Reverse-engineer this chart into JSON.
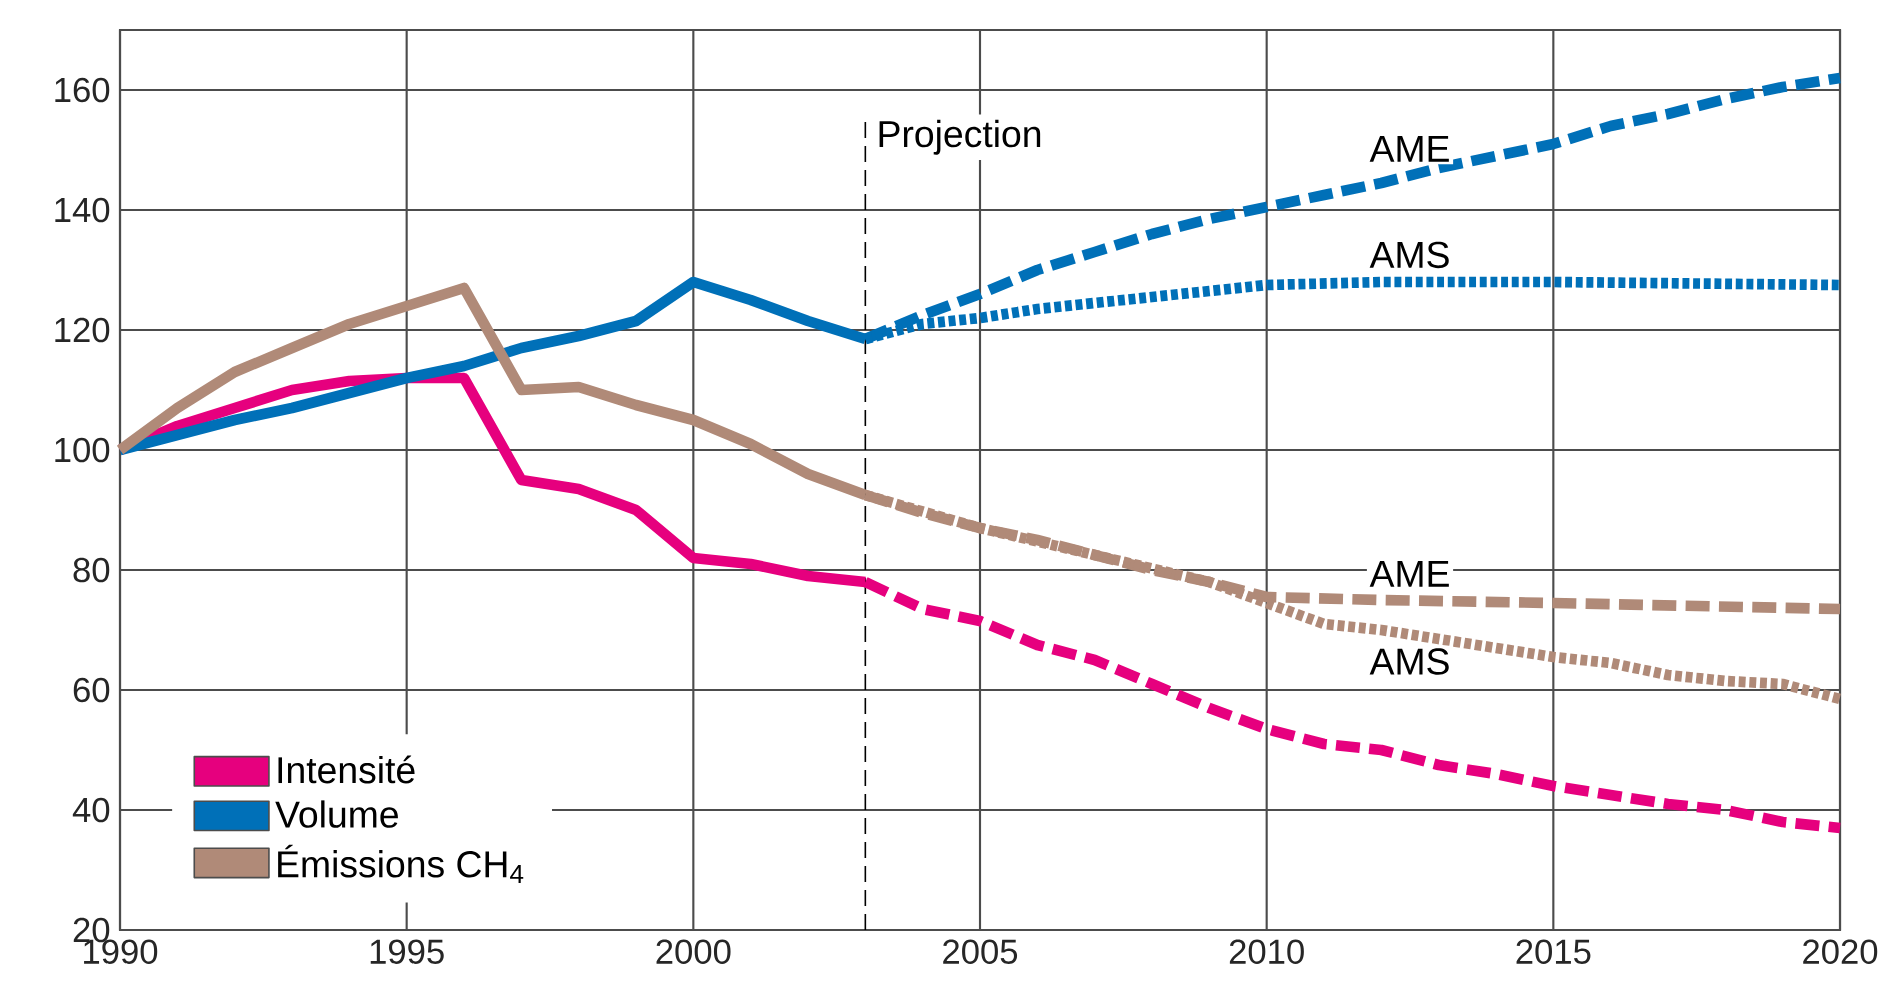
{
  "chart_data": {
    "type": "line",
    "xlim": [
      1990,
      2020
    ],
    "ylim": [
      20,
      170
    ],
    "xticks": [
      1990,
      1995,
      2000,
      2005,
      2010,
      2015,
      2020
    ],
    "yticks": [
      20,
      40,
      60,
      80,
      100,
      120,
      140,
      160
    ],
    "grid": true,
    "legend": "bottom left",
    "marker": "none",
    "ref_lines": [
      {
        "axis": "x",
        "value": 2003,
        "label": "Projection",
        "color": "#000000",
        "line_style": "dashed"
      }
    ],
    "series": [
      {
        "name": "Intensité",
        "color": "#e6007e",
        "line_style": "solid",
        "x": [
          1990,
          1991,
          1992,
          1993,
          1994,
          1995,
          1996,
          1997,
          1998,
          1999,
          2000,
          2001,
          2002,
          2003
        ],
        "values": [
          100,
          104,
          107,
          110,
          111.5,
          112,
          112,
          95,
          93.5,
          90,
          82,
          81,
          79,
          78
        ]
      },
      {
        "name": "Volume",
        "color": "#0070b8",
        "line_style": "solid",
        "x": [
          1990,
          1991,
          1992,
          1993,
          1994,
          1995,
          1996,
          1997,
          1998,
          1999,
          2000,
          2001,
          2002,
          2003
        ],
        "values": [
          100,
          102.5,
          105,
          107,
          109.5,
          112,
          114,
          117,
          119,
          121.5,
          128,
          125,
          121.5,
          118.5
        ]
      },
      {
        "name": "Émissions CH$_{4}$",
        "color": "#b08a78",
        "line_style": "solid",
        "x": [
          1990,
          1991,
          1992,
          1993,
          1994,
          1995,
          1996,
          1997,
          1998,
          1999,
          2000,
          2001,
          2002,
          2003
        ],
        "values": [
          100,
          107,
          113,
          117,
          121,
          124,
          127,
          110,
          110.5,
          107.5,
          105,
          101,
          96,
          92.5
        ]
      },
      {
        "color": "#e6007e",
        "line_style": "dashed",
        "x": [
          2003,
          2004,
          2005,
          2006,
          2007,
          2008,
          2009,
          2010,
          2011,
          2012,
          2013,
          2014,
          2015,
          2016,
          2017,
          2018,
          2019,
          2020
        ],
        "values": [
          78,
          73.5,
          71.5,
          67.5,
          65,
          61,
          57,
          53.5,
          51,
          50,
          47.5,
          46,
          44,
          42.5,
          41,
          40,
          38,
          37
        ]
      },
      {
        "name": "AME",
        "color": "#0070b8",
        "line_style": "dashed",
        "x": [
          2003,
          2004,
          2005,
          2006,
          2007,
          2008,
          2009,
          2010,
          2011,
          2012,
          2013,
          2014,
          2015,
          2016,
          2017,
          2018,
          2019,
          2020
        ],
        "values": [
          118.5,
          122.5,
          126,
          130,
          133,
          136,
          138.5,
          140.5,
          142.5,
          144.5,
          147,
          149,
          151,
          154,
          156,
          158.5,
          160.5,
          162
        ]
      },
      {
        "name": "AMS",
        "color": "#0070b8",
        "line_style": "dotted",
        "x": [
          2003,
          2004,
          2005,
          2006,
          2007,
          2008,
          2009,
          2010,
          2012,
          2015,
          2020
        ],
        "values": [
          118.5,
          121,
          122,
          123.5,
          124.5,
          125.5,
          126.5,
          127.5,
          128,
          128,
          127.5
        ]
      },
      {
        "name": "AME",
        "color": "#b08a78",
        "line_style": "dashed",
        "x": [
          2003,
          2004,
          2005,
          2006,
          2007,
          2008,
          2009,
          2010,
          2012,
          2015,
          2020
        ],
        "values": [
          92.5,
          89.5,
          87,
          85,
          82.5,
          80,
          78,
          75.5,
          75,
          74.5,
          73.5
        ]
      },
      {
        "name": "AMS",
        "color": "#b08a78",
        "line_style": "dotted",
        "x": [
          2003,
          2005,
          2007,
          2009,
          2010,
          2011,
          2012,
          2013,
          2014,
          2015,
          2016,
          2017,
          2018,
          2019,
          2020
        ],
        "values": [
          92.5,
          87,
          82.5,
          78,
          74.5,
          71,
          70,
          68.5,
          67,
          65.5,
          64.5,
          62.5,
          61.5,
          61,
          58.5
        ]
      }
    ]
  }
}
